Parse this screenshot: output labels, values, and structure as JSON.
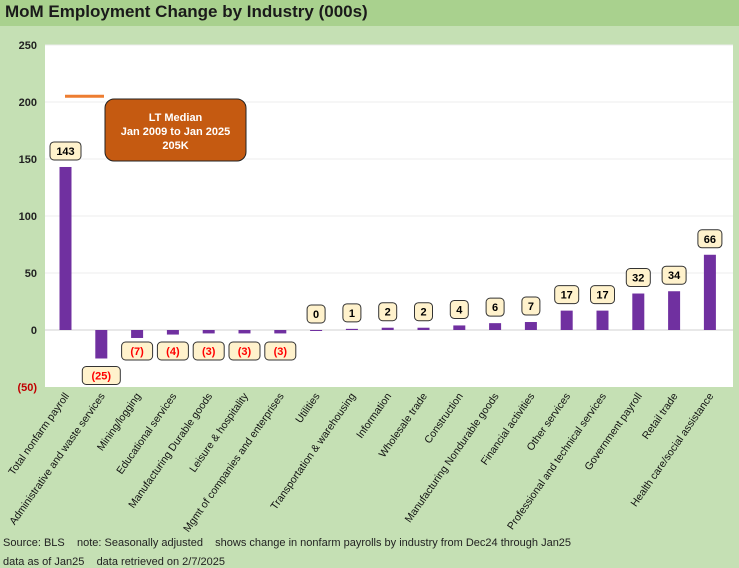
{
  "title": "MoM Employment Change by Industry (000s)",
  "footer": {
    "source": "Source: BLS    note: Seasonally adjusted    shows change in nonfarm payrolls by industry from Dec24 through Jan25",
    "asof": "data as of Jan25    data retrieved on 2/7/2025"
  },
  "colors": {
    "bar": "#7030a0",
    "median_line": "#ed7d31",
    "annotation_fill": "#c55a11",
    "negative_label": "#ff0000",
    "positive_label": "#000000",
    "label_box_fill": "#fff2cc",
    "background": "#c5e0b4",
    "title_bar": "#a9d18e"
  },
  "chart_data": {
    "type": "bar",
    "title": "MoM Employment Change by Industry (000s)",
    "categories": [
      "Total nonfarm payroll",
      "Administrative and waste services",
      "Mining/logging",
      "Educational services",
      "Manufacturing Durable goods",
      "Leisure & hospitality",
      "Mgmt of companies and enterprises",
      "Utilities",
      "Transportation & warehousing",
      "Information",
      "Wholesale trade",
      "Construction",
      "Manufacturing Nondurable goods",
      "Financial activities",
      "Other services",
      "Professional and technical services",
      "Government payroll",
      "Retail trade",
      "Health care/social assistance"
    ],
    "values": [
      143,
      -25,
      -7,
      -4,
      -3,
      -3,
      -3,
      0,
      1,
      2,
      2,
      4,
      6,
      7,
      17,
      17,
      32,
      34,
      66
    ],
    "data_labels": [
      "143",
      "(25)",
      "(7)",
      "(4)",
      "(3)",
      "(3)",
      "(3)",
      "0",
      "1",
      "2",
      "2",
      "4",
      "6",
      "7",
      "17",
      "17",
      "32",
      "34",
      "66"
    ],
    "ylim": [
      -50,
      250
    ],
    "yticks": [
      -50,
      0,
      50,
      100,
      150,
      200,
      250
    ],
    "ytick_labels": [
      "(50)",
      "0",
      "50",
      "100",
      "150",
      "200",
      "250"
    ],
    "median_line": {
      "value": 205,
      "annotation": [
        "LT Median",
        "Jan 2009 to Jan 2025",
        "205K"
      ]
    },
    "grid": true,
    "legend": "none"
  }
}
